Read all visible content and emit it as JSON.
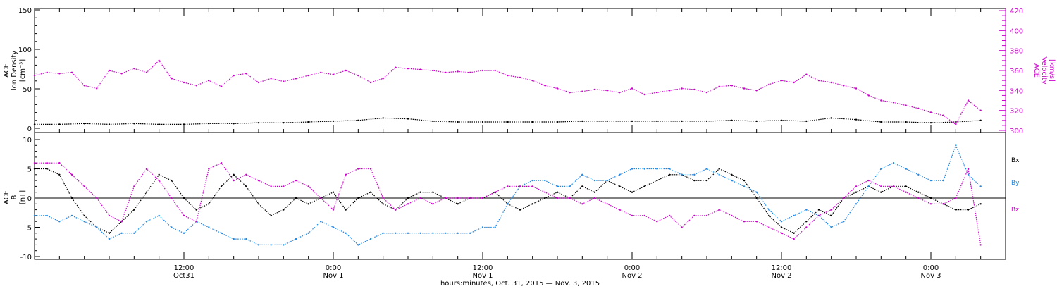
{
  "chart_data": [
    {
      "type": "scatter",
      "panel": "top",
      "ylabel_left": [
        "ACE",
        "Ion Density",
        "[cm⁻³]"
      ],
      "ylabel_right": [
        "ACE",
        "Velocity",
        "[km/s]"
      ],
      "xlim_hours": [
        0,
        78
      ],
      "ylim_left": [
        0,
        150
      ],
      "ylim_right": [
        300,
        420
      ],
      "yticks_left": [
        0,
        50,
        100,
        150
      ],
      "yticks_right": [
        300,
        320,
        340,
        360,
        380,
        400,
        420
      ],
      "series": [
        {
          "color": "#000000",
          "axis": "left",
          "x": [
            0,
            2,
            4,
            6,
            8,
            10,
            12,
            14,
            16,
            18,
            20,
            22,
            24,
            26,
            28,
            30,
            32,
            34,
            36,
            38,
            40,
            42,
            44,
            46,
            48,
            50,
            52,
            54,
            56,
            58,
            60,
            62,
            64,
            66,
            68,
            70,
            72,
            74,
            76
          ],
          "y": [
            5,
            5,
            6,
            5,
            6,
            5,
            5,
            6,
            6,
            7,
            7,
            8,
            9,
            10,
            13,
            12,
            9,
            8,
            8,
            8,
            8,
            8,
            9,
            9,
            9,
            9,
            9,
            9,
            10,
            9,
            10,
            9,
            13,
            11,
            8,
            8,
            7,
            8,
            10
          ]
        },
        {
          "color": "#CC00CC",
          "axis": "right",
          "x": [
            0,
            1,
            2,
            3,
            4,
            5,
            6,
            7,
            8,
            9,
            10,
            11,
            12,
            13,
            14,
            15,
            16,
            17,
            18,
            19,
            20,
            21,
            22,
            23,
            24,
            25,
            26,
            27,
            28,
            29,
            30,
            31,
            32,
            33,
            34,
            35,
            36,
            37,
            38,
            39,
            40,
            41,
            42,
            43,
            44,
            45,
            46,
            47,
            48,
            49,
            50,
            51,
            52,
            53,
            54,
            55,
            56,
            57,
            58,
            59,
            60,
            61,
            62,
            63,
            64,
            65,
            66,
            67,
            68,
            69,
            70,
            71,
            72,
            73,
            74,
            75,
            76
          ],
          "y": [
            355,
            358,
            357,
            358,
            345,
            342,
            360,
            357,
            362,
            358,
            370,
            352,
            348,
            345,
            350,
            344,
            355,
            357,
            348,
            352,
            349,
            352,
            355,
            358,
            356,
            360,
            355,
            348,
            352,
            363,
            362,
            361,
            360,
            358,
            359,
            358,
            360,
            360,
            355,
            353,
            350,
            345,
            342,
            338,
            339,
            341,
            340,
            338,
            342,
            336,
            338,
            340,
            342,
            341,
            338,
            344,
            345,
            342,
            340,
            346,
            350,
            348,
            356,
            350,
            348,
            345,
            342,
            335,
            330,
            328,
            325,
            322,
            318,
            315,
            306,
            330,
            320
          ]
        }
      ]
    },
    {
      "type": "scatter",
      "panel": "bottom",
      "ylabel_left": [
        "ACE",
        "B",
        "[nT]"
      ],
      "xlim_hours": [
        0,
        78
      ],
      "ylim": [
        -10,
        10
      ],
      "yticks": [
        -10,
        -5,
        0,
        5,
        10
      ],
      "legend": [
        "Bx",
        "By",
        "Bz"
      ],
      "series": [
        {
          "name": "Bx",
          "color": "#000000",
          "x": [
            0,
            1,
            2,
            3,
            4,
            5,
            6,
            7,
            8,
            9,
            10,
            11,
            12,
            13,
            14,
            15,
            16,
            17,
            18,
            19,
            20,
            21,
            22,
            23,
            24,
            25,
            26,
            27,
            28,
            29,
            30,
            31,
            32,
            33,
            34,
            35,
            36,
            37,
            38,
            39,
            40,
            41,
            42,
            43,
            44,
            45,
            46,
            47,
            48,
            49,
            50,
            51,
            52,
            53,
            54,
            55,
            56,
            57,
            58,
            59,
            60,
            61,
            62,
            63,
            64,
            65,
            66,
            67,
            68,
            69,
            70,
            71,
            72,
            73,
            74,
            75,
            76
          ],
          "y": [
            5,
            5,
            4,
            0,
            -3,
            -5,
            -6,
            -4,
            -2,
            1,
            4,
            3,
            0,
            -2,
            -1,
            2,
            4,
            2,
            -1,
            -3,
            -2,
            0,
            -1,
            0,
            1,
            -2,
            0,
            1,
            -1,
            -2,
            0,
            1,
            1,
            0,
            -1,
            0,
            0,
            1,
            -1,
            -2,
            -1,
            0,
            1,
            0,
            2,
            1,
            3,
            2,
            1,
            2,
            3,
            4,
            4,
            3,
            3,
            5,
            4,
            3,
            0,
            -3,
            -5,
            -6,
            -4,
            -2,
            -3,
            0,
            1,
            2,
            1,
            2,
            2,
            1,
            0,
            -1,
            -2,
            -2,
            -1
          ]
        },
        {
          "name": "By",
          "color": "#1E88E5",
          "x": [
            0,
            1,
            2,
            3,
            4,
            5,
            6,
            7,
            8,
            9,
            10,
            11,
            12,
            13,
            14,
            15,
            16,
            17,
            18,
            19,
            20,
            21,
            22,
            23,
            24,
            25,
            26,
            27,
            28,
            29,
            30,
            31,
            32,
            33,
            34,
            35,
            36,
            37,
            38,
            39,
            40,
            41,
            42,
            43,
            44,
            45,
            46,
            47,
            48,
            49,
            50,
            51,
            52,
            53,
            54,
            55,
            56,
            57,
            58,
            59,
            60,
            61,
            62,
            63,
            64,
            65,
            66,
            67,
            68,
            69,
            70,
            71,
            72,
            73,
            74,
            75,
            76
          ],
          "y": [
            -3,
            -3,
            -4,
            -3,
            -4,
            -5,
            -7,
            -6,
            -6,
            -4,
            -3,
            -5,
            -6,
            -4,
            -5,
            -6,
            -7,
            -7,
            -8,
            -8,
            -8,
            -7,
            -6,
            -4,
            -5,
            -6,
            -8,
            -7,
            -6,
            -6,
            -6,
            -6,
            -6,
            -6,
            -6,
            -6,
            -5,
            -5,
            -1,
            2,
            3,
            3,
            2,
            2,
            4,
            3,
            3,
            4,
            5,
            5,
            5,
            5,
            4,
            4,
            5,
            4,
            3,
            2,
            1,
            -2,
            -4,
            -3,
            -2,
            -3,
            -5,
            -4,
            -1,
            2,
            5,
            6,
            5,
            4,
            3,
            3,
            9,
            4,
            2
          ]
        },
        {
          "name": "Bz",
          "color": "#CC00CC",
          "x": [
            0,
            1,
            2,
            3,
            4,
            5,
            6,
            7,
            8,
            9,
            10,
            11,
            12,
            13,
            14,
            15,
            16,
            17,
            18,
            19,
            20,
            21,
            22,
            23,
            24,
            25,
            26,
            27,
            28,
            29,
            30,
            31,
            32,
            33,
            34,
            35,
            36,
            37,
            38,
            39,
            40,
            41,
            42,
            43,
            44,
            45,
            46,
            47,
            48,
            49,
            50,
            51,
            52,
            53,
            54,
            55,
            56,
            57,
            58,
            59,
            60,
            61,
            62,
            63,
            64,
            65,
            66,
            67,
            68,
            69,
            70,
            71,
            72,
            73,
            74,
            75,
            76
          ],
          "y": [
            6,
            6,
            6,
            4,
            2,
            0,
            -3,
            -4,
            2,
            5,
            3,
            0,
            -3,
            -4,
            5,
            6,
            3,
            4,
            3,
            2,
            2,
            3,
            2,
            0,
            -2,
            4,
            5,
            5,
            0,
            -2,
            -1,
            0,
            -1,
            0,
            0,
            0,
            0,
            1,
            2,
            2,
            2,
            1,
            0,
            0,
            -1,
            0,
            -1,
            -2,
            -3,
            -3,
            -4,
            -3,
            -5,
            -3,
            -3,
            -2,
            -3,
            -4,
            -4,
            -5,
            -6,
            -7,
            -5,
            -3,
            -2,
            0,
            2,
            3,
            2,
            2,
            1,
            0,
            -1,
            -1,
            0,
            5,
            -8
          ]
        }
      ]
    }
  ],
  "x_axis": {
    "ticks": [
      {
        "hour": 12,
        "line1": "12:00",
        "line2": "Oct31"
      },
      {
        "hour": 24,
        "line1": "0:00",
        "line2": "Nov 1"
      },
      {
        "hour": 36,
        "line1": "12:00",
        "line2": "Nov 1"
      },
      {
        "hour": 48,
        "line1": "0:00",
        "line2": "Nov 2"
      },
      {
        "hour": 60,
        "line1": "12:00",
        "line2": "Nov 2"
      },
      {
        "hour": 72,
        "line1": "0:00",
        "line2": "Nov 3"
      }
    ],
    "xlabel": "hours:minutes, Oct. 31, 2015 — Nov.  3, 2015"
  }
}
